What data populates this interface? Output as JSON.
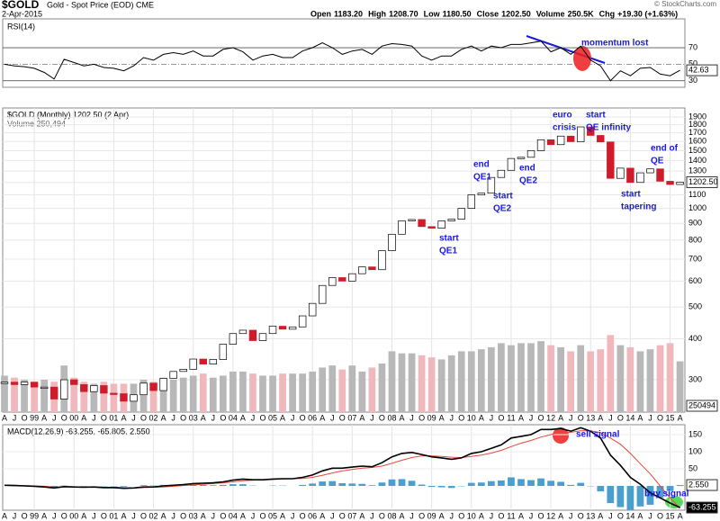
{
  "header": {
    "symbol": "$GOLD",
    "description": "Gold - Spot Price (EOD) CME",
    "date": "2-Apr-2015",
    "watermark": "© StockCharts.com",
    "quote": [
      {
        "label": "Open",
        "value": "1183.20"
      },
      {
        "label": "High",
        "value": "1208.70"
      },
      {
        "label": "Low",
        "value": "1180.50"
      },
      {
        "label": "Close",
        "value": "1202.50"
      },
      {
        "label": "Volume",
        "value": "250.5K"
      },
      {
        "label": "Chg",
        "value": "+19.30 (+1.63%)"
      }
    ]
  },
  "chart_data": [
    {
      "type": "line",
      "title": "RSI(14)",
      "ylim": [
        22,
        105
      ],
      "yticks": [
        30,
        50,
        70
      ],
      "x": [
        1998.25,
        1998.5,
        1998.75,
        1999,
        1999.25,
        1999.5,
        1999.75,
        2000,
        2000.25,
        2000.5,
        2000.75,
        2001,
        2001.25,
        2001.5,
        2001.75,
        2002,
        2002.25,
        2002.5,
        2002.75,
        2003,
        2003.25,
        2003.5,
        2003.75,
        2004,
        2004.25,
        2004.5,
        2004.75,
        2005,
        2005.25,
        2005.5,
        2005.75,
        2006,
        2006.25,
        2006.5,
        2006.75,
        2007,
        2007.25,
        2007.5,
        2007.75,
        2008,
        2008.25,
        2008.5,
        2008.75,
        2009,
        2009.25,
        2009.5,
        2009.75,
        2010,
        2010.25,
        2010.5,
        2010.75,
        2011,
        2011.25,
        2011.5,
        2011.75,
        2012,
        2012.25,
        2012.5,
        2012.75,
        2013,
        2013.25,
        2013.5,
        2013.75,
        2014,
        2014.25,
        2014.5,
        2014.75,
        2015,
        2015.25
      ],
      "xlim": [
        1998.25,
        2015.35
      ],
      "series": [
        {
          "name": "RSI(14)",
          "color": "#000000",
          "values": [
            50,
            48,
            47,
            45,
            40,
            32,
            56,
            52,
            48,
            50,
            46,
            45,
            42,
            48,
            58,
            55,
            62,
            64,
            62,
            66,
            60,
            60,
            68,
            70,
            65,
            55,
            60,
            62,
            58,
            58,
            66,
            70,
            76,
            70,
            62,
            66,
            68,
            62,
            72,
            75,
            74,
            72,
            60,
            55,
            60,
            60,
            68,
            72,
            66,
            72,
            70,
            74,
            74,
            76,
            78,
            65,
            70,
            62,
            72,
            55,
            48,
            30,
            42,
            36,
            45,
            46,
            38,
            36,
            42.63
          ]
        }
      ],
      "annotations": [
        "momentum lost"
      ]
    },
    {
      "type": "price",
      "title": "$GOLD (Monthly) 1202.50 (2 Apr)",
      "log_scale": true,
      "grid": true,
      "ylim": [
        239,
        2025
      ],
      "yticks": [
        300,
        400,
        500,
        600,
        700,
        800,
        900,
        1000,
        1100,
        1200,
        1300,
        1400,
        1500,
        1600,
        1700,
        1800,
        1900
      ],
      "current": {
        "value": 1202.5,
        "label": "1202.50"
      },
      "series": [
        {
          "name": "$GOLD",
          "up_color": "#ffffff",
          "down_color": "#d01c2a",
          "values": [
            295,
            290,
            295,
            285,
            285,
            262,
            300,
            290,
            276,
            288,
            273,
            272,
            258,
            270,
            293,
            278,
            303,
            318,
            323,
            347,
            335,
            346,
            385,
            415,
            425,
            395,
            415,
            437,
            428,
            435,
            470,
            513,
            582,
            615,
            600,
            632,
            663,
            650,
            743,
            834,
            917,
            925,
            880,
            870,
            916,
            927,
            1000,
            1100,
            1113,
            1243,
            1307,
            1420,
            1432,
            1500,
            1620,
            1565,
            1662,
            1598,
            1773,
            1670,
            1595,
            1235,
            1327,
            1200,
            1284,
            1320,
            1210,
            1183,
            1202.5
          ]
        }
      ],
      "volume": {
        "name": "Volume 250,494",
        "ylim": [
          0,
          1500000
        ],
        "up_color": "#b8b8b8",
        "down_color": "#f0b8bc",
        "values": [
          180000,
          170000,
          160000,
          150000,
          160000,
          150000,
          230000,
          170000,
          150000,
          140000,
          150000,
          140000,
          140000,
          140000,
          160000,
          150000,
          170000,
          160000,
          170000,
          180000,
          190000,
          170000,
          180000,
          200000,
          200000,
          190000,
          180000,
          180000,
          190000,
          190000,
          190000,
          200000,
          220000,
          230000,
          210000,
          230000,
          200000,
          220000,
          240000,
          300000,
          290000,
          290000,
          280000,
          270000,
          260000,
          280000,
          300000,
          300000,
          310000,
          320000,
          340000,
          330000,
          340000,
          340000,
          350000,
          330000,
          320000,
          300000,
          330000,
          300000,
          310000,
          380000,
          330000,
          320000,
          300000,
          310000,
          330000,
          340000,
          250494
        ]
      },
      "annotations": [
        [
          "start",
          "QE1"
        ],
        [
          "end",
          "QE1"
        ],
        [
          "start",
          "QE2"
        ],
        [
          "end",
          "QE2"
        ],
        [
          "euro",
          "crisis"
        ],
        [
          "start",
          "QE infinity"
        ],
        [
          "start",
          "tapering"
        ],
        [
          "end of",
          "QE"
        ]
      ],
      "xticks": [
        {
          "value": 1998.25,
          "label": "A"
        },
        {
          "value": 1998.5,
          "label": "J"
        },
        {
          "value": 1998.75,
          "label": "O"
        },
        {
          "value": 1999,
          "label": "99"
        },
        {
          "value": 1999.25,
          "label": "A"
        },
        {
          "value": 1999.5,
          "label": "J"
        },
        {
          "value": 1999.75,
          "label": "O"
        },
        {
          "value": 2000,
          "label": "00"
        },
        {
          "value": 2000.25,
          "label": "A"
        },
        {
          "value": 2000.5,
          "label": "J"
        },
        {
          "value": 2000.75,
          "label": "O"
        },
        {
          "value": 2001,
          "label": "01"
        },
        {
          "value": 2001.25,
          "label": "A"
        },
        {
          "value": 2001.5,
          "label": "J"
        },
        {
          "value": 2001.75,
          "label": "O"
        },
        {
          "value": 2002,
          "label": "02"
        },
        {
          "value": 2002.25,
          "label": "A"
        },
        {
          "value": 2002.5,
          "label": "J"
        },
        {
          "value": 2002.75,
          "label": "O"
        },
        {
          "value": 2003,
          "label": "03"
        },
        {
          "value": 2003.25,
          "label": "A"
        },
        {
          "value": 2003.5,
          "label": "J"
        },
        {
          "value": 2003.75,
          "label": "O"
        },
        {
          "value": 2004,
          "label": "04"
        },
        {
          "value": 2004.25,
          "label": "A"
        },
        {
          "value": 2004.5,
          "label": "J"
        },
        {
          "value": 2004.75,
          "label": "O"
        },
        {
          "value": 2005,
          "label": "05"
        },
        {
          "value": 2005.25,
          "label": "A"
        },
        {
          "value": 2005.5,
          "label": "J"
        },
        {
          "value": 2005.75,
          "label": "O"
        },
        {
          "value": 2006,
          "label": "06"
        },
        {
          "value": 2006.25,
          "label": "A"
        },
        {
          "value": 2006.5,
          "label": "J"
        },
        {
          "value": 2006.75,
          "label": "O"
        },
        {
          "value": 2007,
          "label": "07"
        },
        {
          "value": 2007.25,
          "label": "A"
        },
        {
          "value": 2007.5,
          "label": "J"
        },
        {
          "value": 2007.75,
          "label": "O"
        },
        {
          "value": 2008,
          "label": "08"
        },
        {
          "value": 2008.25,
          "label": "A"
        },
        {
          "value": 2008.5,
          "label": "J"
        },
        {
          "value": 2008.75,
          "label": "O"
        },
        {
          "value": 2009,
          "label": "09"
        },
        {
          "value": 2009.25,
          "label": "A"
        },
        {
          "value": 2009.5,
          "label": "J"
        },
        {
          "value": 2009.75,
          "label": "O"
        },
        {
          "value": 2010,
          "label": "10"
        },
        {
          "value": 2010.25,
          "label": "A"
        },
        {
          "value": 2010.5,
          "label": "J"
        },
        {
          "value": 2010.75,
          "label": "O"
        },
        {
          "value": 2011,
          "label": "11"
        },
        {
          "value": 2011.25,
          "label": "A"
        },
        {
          "value": 2011.5,
          "label": "J"
        },
        {
          "value": 2011.75,
          "label": "O"
        },
        {
          "value": 2012,
          "label": "12"
        },
        {
          "value": 2012.25,
          "label": "A"
        },
        {
          "value": 2012.5,
          "label": "J"
        },
        {
          "value": 2012.75,
          "label": "O"
        },
        {
          "value": 2013,
          "label": "13"
        },
        {
          "value": 2013.25,
          "label": "A"
        },
        {
          "value": 2013.5,
          "label": "J"
        },
        {
          "value": 2013.75,
          "label": "O"
        },
        {
          "value": 2014,
          "label": "14"
        },
        {
          "value": 2014.25,
          "label": "A"
        },
        {
          "value": 2014.5,
          "label": "J"
        },
        {
          "value": 2014.75,
          "label": "O"
        },
        {
          "value": 2015,
          "label": "15"
        },
        {
          "value": 2015.25,
          "label": "A"
        }
      ]
    },
    {
      "type": "macd",
      "title": "MACD(12,26,9) -63.255, -65.805, 2.550",
      "ylim": [
        -71,
        179
      ],
      "yticks": [
        50,
        100,
        150
      ],
      "series": [
        {
          "name": "MACD",
          "color": "#000000",
          "current": {
            "value": -63.255,
            "label": "-63.255"
          },
          "values": [
            2,
            1,
            0,
            -1,
            -3,
            -6,
            -2,
            -3,
            -4,
            -3,
            -5,
            -5,
            -7,
            -6,
            -3,
            -3,
            0,
            2,
            4,
            7,
            8,
            9,
            12,
            17,
            20,
            18,
            18,
            20,
            21,
            21,
            25,
            32,
            44,
            52,
            52,
            55,
            58,
            56,
            68,
            85,
            95,
            98,
            92,
            85,
            82,
            78,
            82,
            95,
            100,
            110,
            120,
            140,
            145,
            150,
            165,
            165,
            168,
            160,
            170,
            160,
            140,
            90,
            60,
            25,
            5,
            -20,
            -35,
            -50,
            -63.255
          ]
        },
        {
          "name": "Signal",
          "color": "#e8473c",
          "values": [
            2,
            2,
            1,
            0,
            -1,
            -3,
            -3,
            -3,
            -3,
            -3,
            -4,
            -4,
            -5,
            -6,
            -5,
            -4,
            -3,
            -1,
            1,
            3,
            5,
            7,
            9,
            12,
            15,
            17,
            18,
            19,
            20,
            21,
            22,
            25,
            31,
            38,
            44,
            48,
            52,
            54,
            58,
            66,
            75,
            83,
            88,
            88,
            86,
            84,
            83,
            86,
            90,
            96,
            104,
            115,
            125,
            133,
            143,
            150,
            156,
            157,
            161,
            161,
            156,
            140,
            122,
            95,
            65,
            35,
            0,
            -35,
            -65.805
          ]
        },
        {
          "name": "Histogram",
          "color": "#4a9fcf",
          "current": {
            "value": 2.55,
            "label": "2.550"
          },
          "values": [
            0,
            -1,
            -1,
            -1,
            -2,
            -3,
            1,
            0,
            -1,
            0,
            -1,
            -1,
            -2,
            0,
            2,
            1,
            3,
            3,
            3,
            4,
            3,
            2,
            3,
            5,
            5,
            1,
            0,
            1,
            1,
            0,
            3,
            7,
            13,
            14,
            8,
            7,
            6,
            2,
            10,
            19,
            20,
            15,
            4,
            -3,
            -4,
            -6,
            -1,
            9,
            10,
            14,
            16,
            25,
            20,
            17,
            22,
            15,
            12,
            3,
            9,
            -1,
            -16,
            -50,
            -62,
            -70,
            -60,
            -55,
            -35,
            -15,
            2.55
          ]
        }
      ],
      "annotations": [
        "sell signal",
        "buy signal"
      ]
    }
  ]
}
